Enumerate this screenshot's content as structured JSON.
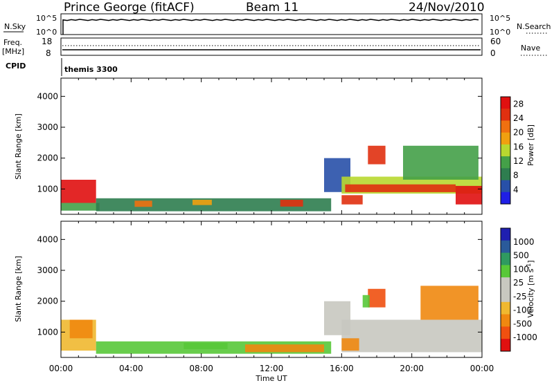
{
  "header": {
    "station": "Prince George (fitACF)",
    "beam": "Beam 11",
    "date": "24/Nov/2010"
  },
  "status_panels": {
    "nsky_label": "N.Sky",
    "nsky_top": "10^5",
    "nsky_bottom": "10^0",
    "nsearch_label": "N.Search",
    "nsearch_top": "10^5",
    "nsearch_bottom": "10^0",
    "freq_label": "Freq.",
    "freq_unit": "[MHz]",
    "freq_top": "18",
    "freq_bottom": "8",
    "nave_label": "Nave",
    "nave_top": "60",
    "nave_bottom": "0",
    "cpid_label": "CPID",
    "cpid_value": "themis 3300"
  },
  "colors": {
    "power_scale": [
      "#1f1fe6",
      "#2850a8",
      "#2e7d4f",
      "#44a048",
      "#b8d830",
      "#f0a010",
      "#f07010",
      "#e03010",
      "#e01010"
    ],
    "velocity_scale": [
      "#e01010",
      "#f05010",
      "#f08810",
      "#f0b830",
      "#c8c8c0",
      "#c8c8c0",
      "#58c838",
      "#2f9a60",
      "#2a5a9a",
      "#1f1fb0"
    ]
  },
  "chart_data": [
    {
      "type": "heatmap",
      "name": "power",
      "xlabel": "Time UT",
      "ylabel": "Slant Range [km]",
      "x_ticks": [
        "00:00",
        "04:00",
        "08:00",
        "12:00",
        "16:00",
        "20:00",
        "00:00"
      ],
      "x_range_hours": [
        0,
        24
      ],
      "y_ticks": [
        1000,
        2000,
        3000,
        4000
      ],
      "ylim": [
        180,
        4590
      ],
      "colorbar": {
        "label": "Power [dB]",
        "ticks": [
          "4",
          "8",
          "12",
          "16",
          "20",
          "24",
          "28"
        ],
        "range": [
          0,
          30
        ]
      },
      "cells": [
        {
          "t0": 0.0,
          "t1": 2.0,
          "r0": 550,
          "r1": 1300,
          "value": 28
        },
        {
          "t0": 0.0,
          "t1": 2.2,
          "r0": 300,
          "r1": 550,
          "value": 12
        },
        {
          "t0": 2.0,
          "t1": 15.4,
          "r0": 280,
          "r1": 700,
          "value": 8
        },
        {
          "t0": 4.2,
          "t1": 5.2,
          "r0": 420,
          "r1": 620,
          "value": 20
        },
        {
          "t0": 7.5,
          "t1": 8.6,
          "r0": 480,
          "r1": 650,
          "value": 18
        },
        {
          "t0": 12.5,
          "t1": 13.8,
          "r0": 430,
          "r1": 650,
          "value": 24
        },
        {
          "t0": 15.0,
          "t1": 16.5,
          "r0": 900,
          "r1": 2000,
          "value": 6
        },
        {
          "t0": 16.0,
          "t1": 24.0,
          "r0": 850,
          "r1": 1400,
          "value": 14
        },
        {
          "t0": 16.2,
          "t1": 22.5,
          "r0": 900,
          "r1": 1150,
          "value": 24
        },
        {
          "t0": 17.5,
          "t1": 18.5,
          "r0": 1800,
          "r1": 2400,
          "value": 26
        },
        {
          "t0": 19.5,
          "t1": 23.8,
          "r0": 1300,
          "r1": 2400,
          "value": 10
        },
        {
          "t0": 22.5,
          "t1": 24.0,
          "r0": 500,
          "r1": 1100,
          "value": 28
        },
        {
          "t0": 16.0,
          "t1": 17.2,
          "r0": 500,
          "r1": 800,
          "value": 26
        }
      ]
    },
    {
      "type": "heatmap",
      "name": "velocity",
      "xlabel": "Time UT",
      "ylabel": "Slant Range [km]",
      "x_ticks": [
        "00:00",
        "04:00",
        "08:00",
        "12:00",
        "16:00",
        "20:00",
        "00:00"
      ],
      "x_range_hours": [
        0,
        24
      ],
      "y_ticks": [
        1000,
        2000,
        3000,
        4000
      ],
      "ylim": [
        180,
        4590
      ],
      "colorbar": {
        "label": "Velocity [m s^-1]",
        "ticks": [
          "1000",
          "500",
          "100",
          "25",
          "-25",
          "-100",
          "-500",
          "-1000"
        ]
      },
      "cells": [
        {
          "t0": 0.0,
          "t1": 2.0,
          "r0": 400,
          "r1": 1400,
          "value": -25
        },
        {
          "t0": 0.5,
          "t1": 1.8,
          "r0": 800,
          "r1": 1400,
          "value": -150
        },
        {
          "t0": 2.0,
          "t1": 15.4,
          "r0": 300,
          "r1": 700,
          "value": 100
        },
        {
          "t0": 7.0,
          "t1": 9.5,
          "r0": 450,
          "r1": 650,
          "value": 100
        },
        {
          "t0": 10.5,
          "t1": 15.0,
          "r0": 350,
          "r1": 600,
          "value": -100
        },
        {
          "t0": 15.0,
          "t1": 16.5,
          "r0": 900,
          "r1": 2000,
          "value": 0
        },
        {
          "t0": 16.0,
          "t1": 24.0,
          "r0": 350,
          "r1": 1400,
          "value": 0
        },
        {
          "t0": 16.0,
          "t1": 17.0,
          "r0": 400,
          "r1": 800,
          "value": -150
        },
        {
          "t0": 17.5,
          "t1": 18.5,
          "r0": 1800,
          "r1": 2400,
          "value": -500
        },
        {
          "t0": 17.2,
          "t1": 17.6,
          "r0": 1800,
          "r1": 2200,
          "value": 100
        },
        {
          "t0": 20.5,
          "t1": 23.8,
          "r0": 1400,
          "r1": 2500,
          "value": -100
        }
      ]
    }
  ]
}
